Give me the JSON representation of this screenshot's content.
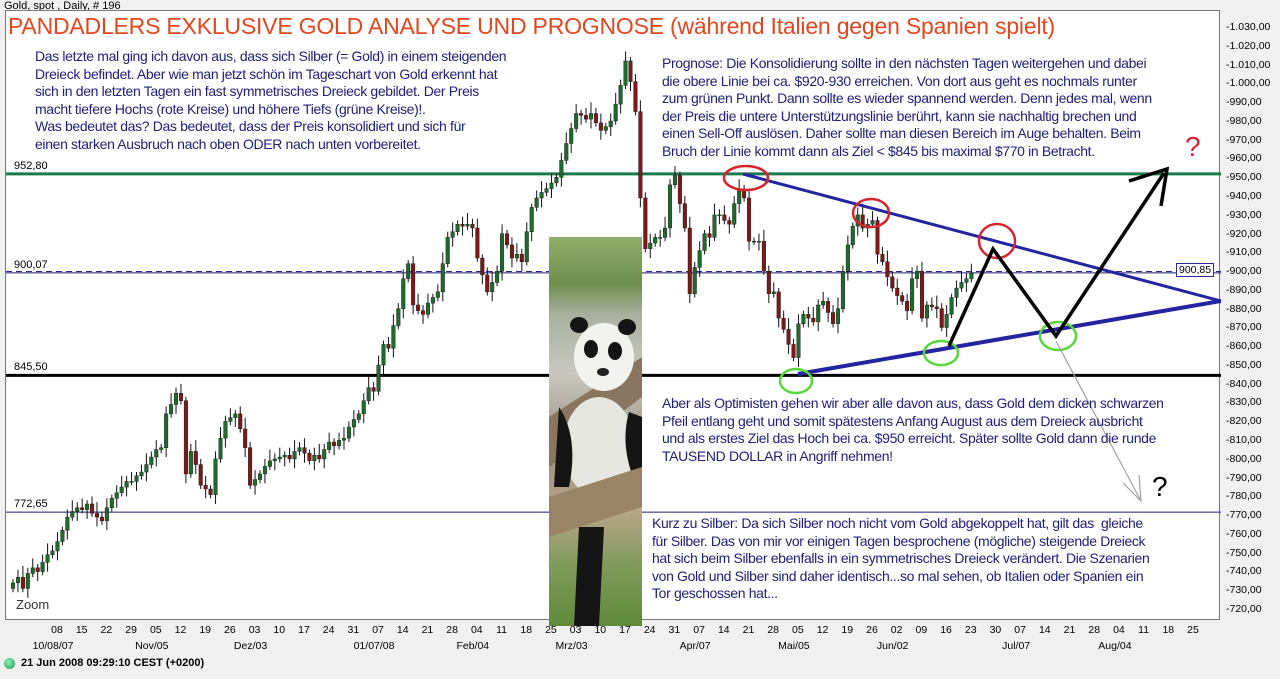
{
  "header": "Gold, spot , Daily, # 196",
  "title": "PANDADLERS EXKLUSIVE GOLD ANALYSE UND PROGNOSE (während Italien gegen Spanien spielt)",
  "notes": {
    "left": "Das letzte mal ging ich davon aus, dass sich Silber (= Gold) in einem steigenden\nDreieck befindet. Aber wie man jetzt schön im Tageschart von Gold erkennt hat\nsich in den letzten Tagen ein fast symmetrisches Dreieck gebildet. Der Preis\nmacht tiefere Hochs (rote Kreise) und höhere Tiefs (grüne Kreise)!.\nWas bedeutet das? Das bedeutet, dass der Preis konsolidiert und sich für\neinen starken Ausbruch nach oben ODER nach unten vorbereitet.",
    "prognose": "Prognose: Die Konsolidierung sollte in den nächsten Tagen weitergehen und dabei\ndie obere Linie bei ca. $920-930 erreichen. Von dort aus geht es nochmals runter\nzum grünen Punkt. Dann sollte es wieder spannend werden. Denn jedes mal, wenn\nder Preis die untere Unterstützungslinie berührt, kann sie nachhaltig brechen und\neinen Sell-Off auslösen. Daher sollte man diesen Bereich im Auge behalten. Beim\nBruch der Linie kommt dann als Ziel < $845 bis maximal $770 in Betracht.",
    "optimist": "Aber als Optimisten gehen wir aber alle davon aus, dass Gold dem dicken schwarzen\nPfeil entlang geht und somit spätestens Anfang August aus dem Dreieck ausbricht\nund als erstes Ziel das Hoch bei ca. $950 erreicht. Später sollte Gold dann die runde\nTAUSEND DOLLAR in Angriff nehmen!",
    "silber": "Kurz zu Silber: Da sich Silber noch nicht vom Gold abgekoppelt hat, gilt das  gleiche\nfür Silber. Das von mir vor einigen Tagen besprochene (mögliche) steigende Dreieck\nhat sich beim Silber ebenfalls in ein symmetrisches Dreieck verändert. Die Szenarien\nvon Gold und Silber sind daher identisch...so mal sehen, ob Italien oder Spanien ein\nTor geschossen hat...",
    "q_up": "?",
    "q_down": "?",
    "zoom": "Zoom"
  },
  "status": {
    "time": "21 Jun 2008 09:29:10  CEST (+0200)",
    "icon": "connection-status-icon",
    "color": "#1aa35a"
  },
  "chart_data": {
    "type": "candlestick",
    "ylim": [
      720,
      1030
    ],
    "y_ticks": [
      1030,
      1020,
      1010,
      1000,
      990,
      980,
      970,
      960,
      950,
      940,
      930,
      920,
      910,
      900,
      890,
      880,
      870,
      860,
      850,
      840,
      830,
      820,
      810,
      800,
      790,
      780,
      770,
      760,
      750,
      740,
      730,
      720
    ],
    "y_tick_labels": [
      "1.030,00",
      "1.020,00",
      "1.010,00",
      "1.000,00",
      "990,00",
      "980,00",
      "970,00",
      "960,00",
      "950,00",
      "940,00",
      "930,00",
      "920,00",
      "910,00",
      "900,00",
      "890,00",
      "880,00",
      "870,00",
      "860,00",
      "850,00",
      "840,00",
      "830,00",
      "820,00",
      "810,00",
      "800,00",
      "790,00",
      "780,00",
      "770,00",
      "760,00",
      "750,00",
      "740,00",
      "730,00",
      "720,00"
    ],
    "last_price": {
      "value": 900.85,
      "label": "900,85"
    },
    "x_day_ticks": [
      "08",
      "15",
      "22",
      "29",
      "05",
      "12",
      "19",
      "26",
      "03",
      "10",
      "17",
      "24",
      "31",
      "07",
      "14",
      "21",
      "28",
      "04",
      "11",
      "18",
      "25",
      "03",
      "10",
      "17",
      "24",
      "31",
      "07",
      "14",
      "21",
      "28",
      "05",
      "12",
      "19",
      "26",
      "02",
      "09",
      "16",
      "23",
      "30",
      "07",
      "14",
      "21",
      "28",
      "04",
      "11",
      "18",
      "25"
    ],
    "x_month_labels": [
      {
        "label": "10/08/07",
        "tick": 0
      },
      {
        "label": "Nov/05",
        "tick": 4
      },
      {
        "label": "Dez/03",
        "tick": 8
      },
      {
        "label": "01/07/08",
        "tick": 13
      },
      {
        "label": "Feb/04",
        "tick": 17
      },
      {
        "label": "Mrz/03",
        "tick": 21
      },
      {
        "label": "Apr/07",
        "tick": 26
      },
      {
        "label": "Mai/05",
        "tick": 30
      },
      {
        "label": "Jun/02",
        "tick": 34
      },
      {
        "label": "Jul/07",
        "tick": 39
      },
      {
        "label": "Aug/04",
        "tick": 43
      }
    ],
    "levels": [
      {
        "value": 952.8,
        "label": "952,80",
        "color": "#1a7a4e"
      },
      {
        "value": 900.07,
        "label": "900,07",
        "color": "#1c1c70"
      },
      {
        "value": 845.5,
        "label": "845,50",
        "color": "#000000"
      },
      {
        "value": 772.65,
        "label": "772,65",
        "color": "#1c1c70"
      }
    ],
    "closes": [
      735,
      738,
      732,
      740,
      743,
      741,
      746,
      750,
      752,
      757,
      763,
      770,
      773,
      775,
      774,
      777,
      772,
      770,
      768,
      775,
      780,
      783,
      786,
      789,
      789,
      792,
      794,
      798,
      802,
      806,
      807,
      825,
      830,
      836,
      832,
      793,
      805,
      798,
      787,
      785,
      782,
      801,
      812,
      821,
      823,
      825,
      817,
      807,
      787,
      790,
      793,
      797,
      800,
      801,
      802,
      803,
      801,
      805,
      807,
      804,
      800,
      803,
      801,
      806,
      810,
      808,
      811,
      812,
      818,
      822,
      825,
      832,
      839,
      837,
      851,
      862,
      860,
      872,
      881,
      897,
      905,
      883,
      880,
      878,
      884,
      887,
      890,
      905,
      919,
      922,
      926,
      925,
      926,
      924,
      908,
      899,
      890,
      895,
      901,
      921,
      915,
      908,
      910,
      906,
      922,
      935,
      940,
      943,
      945,
      948,
      951,
      960,
      969,
      977,
      985,
      984,
      982,
      985,
      980,
      976,
      978,
      981,
      990,
      1000,
      1013,
      1002,
      986,
      940,
      913,
      916,
      919,
      919,
      924,
      947,
      952,
      937,
      924,
      889,
      903,
      912,
      921,
      919,
      931,
      931,
      928,
      926,
      937,
      944,
      940,
      917,
      917,
      917,
      901,
      889,
      890,
      876,
      870,
      862,
      855,
      873,
      878,
      876,
      874,
      883,
      885,
      879,
      873,
      881,
      901,
      915,
      925,
      931,
      924,
      926,
      928,
      910,
      906,
      898,
      892,
      888,
      885,
      880,
      897,
      901,
      876,
      883,
      882,
      881,
      871,
      878,
      887,
      892,
      895,
      897,
      900
    ],
    "colors": {
      "up": "#1f6b2e",
      "down": "#7a1a1a",
      "triangle": "#2424a0",
      "high_circle": "#d6242e",
      "low_circle": "#5ad63a",
      "arrow": "#000000",
      "alt_arrow": "#a0a0a0",
      "question_up": "#d6242e"
    }
  }
}
